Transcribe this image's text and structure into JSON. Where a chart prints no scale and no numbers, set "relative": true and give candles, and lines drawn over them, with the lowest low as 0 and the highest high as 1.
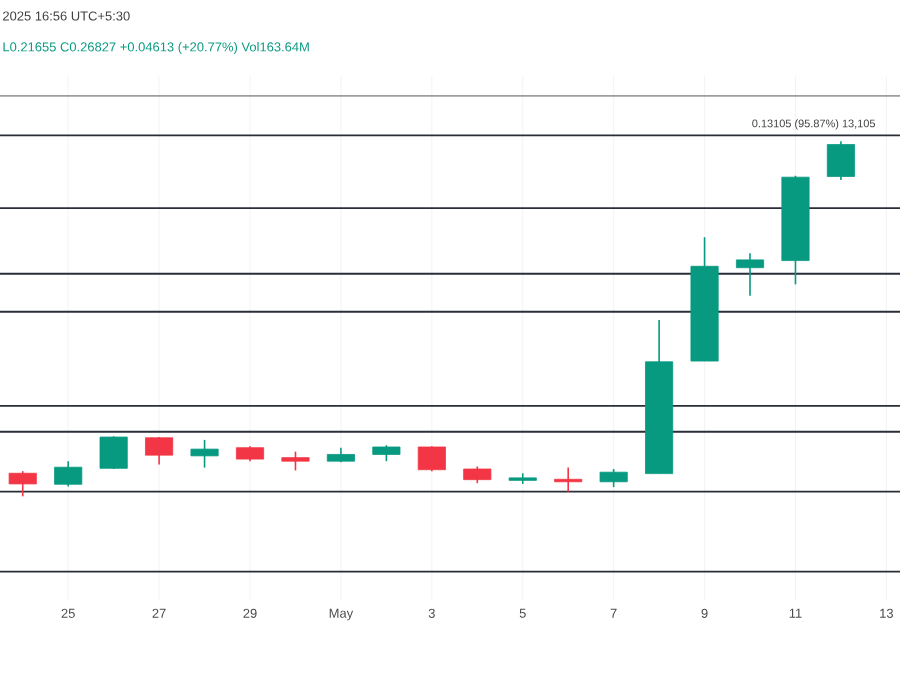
{
  "chart_data": {
    "type": "candlestick",
    "relative": true,
    "categories": [
      null,
      "25",
      null,
      "27",
      null,
      "29",
      null,
      "May",
      null,
      "3",
      null,
      "5",
      null,
      "7",
      null,
      "9",
      null,
      "11",
      null,
      "13"
    ],
    "ohlc": [
      [
        0.065,
        0.071,
        0,
        0.035
      ],
      [
        0.034,
        0.099,
        0.028,
        0.082
      ],
      [
        0.079,
        0.169,
        0.077,
        0.167
      ],
      [
        0.165,
        0.167,
        0.09,
        0.116
      ],
      [
        0.114,
        0.159,
        0.081,
        0.133
      ],
      [
        0.137,
        0.141,
        0.099,
        0.105
      ],
      [
        0.109,
        0.126,
        0.073,
        0.099
      ],
      [
        0.099,
        0.137,
        0.096,
        0.118
      ],
      [
        0.118,
        0.144,
        0.099,
        0.139
      ],
      [
        0.139,
        0.141,
        0.071,
        0.075
      ],
      [
        0.077,
        0.084,
        0.037,
        0.047
      ],
      [
        0.045,
        0.065,
        0.035,
        0.052
      ],
      [
        0.048,
        0.081,
        0.013,
        0.041
      ],
      [
        0.041,
        0.077,
        0.026,
        0.068
      ],
      [
        0.064,
        0.497,
        0.064,
        0.379
      ],
      [
        0.381,
        0.73,
        0.381,
        0.648
      ],
      [
        0.644,
        0.685,
        0.565,
        0.666
      ],
      [
        0.664,
        0.903,
        0.597,
        0.899
      ],
      [
        0.901,
        1,
        0.891,
        0.991
      ],
      null
    ],
    "ref_lines": [
      {
        "axis": "y",
        "value": 1.128,
        "color": "#9e9e9e"
      },
      {
        "axis": "y",
        "value": 1.017,
        "color": "#2a2e39"
      },
      {
        "axis": "y",
        "value": 0.812,
        "color": "#2a2e39"
      },
      {
        "axis": "y",
        "value": 0.627,
        "color": "#2a2e39"
      },
      {
        "axis": "y",
        "value": 0.52,
        "color": "#2a2e39"
      },
      {
        "axis": "y",
        "value": 0.255,
        "color": "#2a2e39"
      },
      {
        "axis": "y",
        "value": 0.182,
        "color": "#2a2e39"
      },
      {
        "axis": "y",
        "value": 0.013,
        "color": "#2a2e39"
      },
      {
        "axis": "y",
        "value": -0.212,
        "color": "#2a2e39"
      }
    ],
    "annotations": [
      "2025 16:56 UTC+5:30",
      "L0.21655 C0.26827 +0.04613 (+20.77%) Vol163.64M",
      "0.13105 (95.87%) 13,105"
    ],
    "grid": "x",
    "tick_labels": "x"
  }
}
